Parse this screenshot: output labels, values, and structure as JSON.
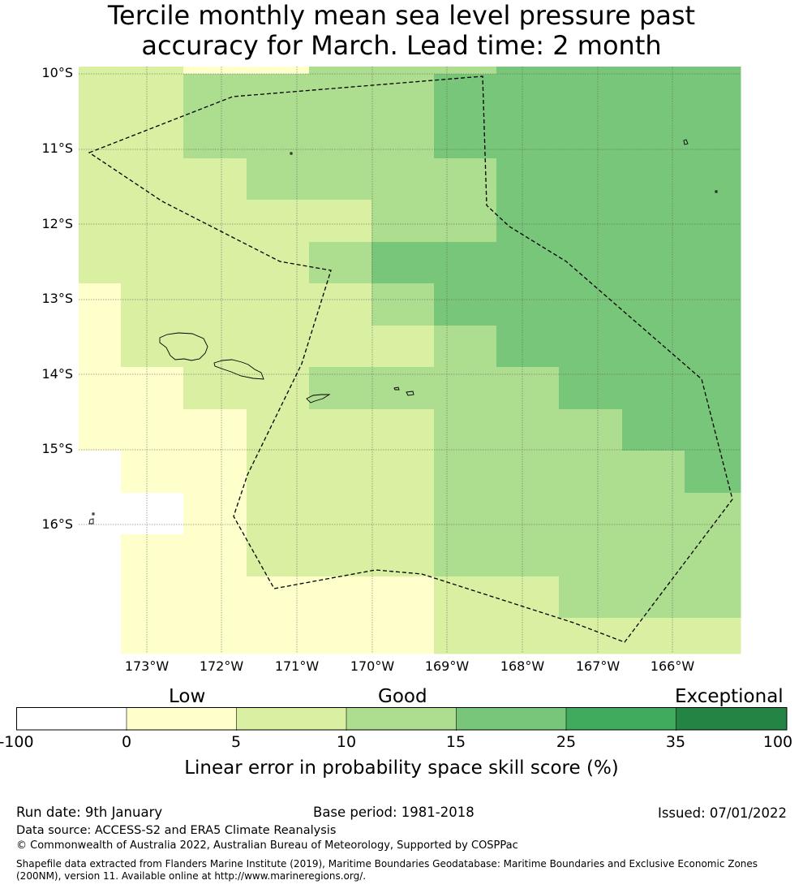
{
  "title": {
    "line1": "Tercile monthly mean sea level pressure past",
    "line2": "accuracy for March. Lead time: 2 month"
  },
  "map": {
    "lat_labels": [
      "10°S",
      "11°S",
      "12°S",
      "13°S",
      "14°S",
      "15°S",
      "16°S"
    ],
    "lon_labels": [
      "173°W",
      "172°W",
      "171°W",
      "170°W",
      "169°W",
      "168°W",
      "167°W",
      "166°W"
    ],
    "colors": {
      "below_0": "#ffffff",
      "0_5": "#ffffcc",
      "5_10": "#d9f0a3",
      "10_15": "#addd8e",
      "15_25": "#78c679",
      "25_35": "#41ab5d",
      "35_100": "#238443"
    },
    "features": [
      "skill-score-grid",
      "eez-boundary-dashed",
      "samoa-islands",
      "american-samoa-islands",
      "swains-island",
      "wallis-futuna-islands"
    ]
  },
  "colorbar": {
    "category_low": "Low",
    "category_good": "Good",
    "category_exceptional": "Exceptional",
    "ticks": [
      "-100",
      "0",
      "5",
      "10",
      "15",
      "25",
      "35",
      "100"
    ],
    "label": "Linear error in probability space skill score (%)"
  },
  "footer": {
    "run_date": "Run date: 9th January",
    "base_period": "Base period: 1981-2018",
    "issued": "Issued: 07/01/2022",
    "data_source": "Data source: ACCESS-S2 and ERA5 Climate Reanalysis",
    "copyright": "© Commonwealth of Australia 2022, Australian Bureau of Meteorology, Supported by COSPPac",
    "shapefile": "Shapefile data extracted from Flanders Marine Institute (2019), Maritime Boundaries Geodatabase: Maritime Boundaries and Exclusive Economic Zones (200NM), version 11. Available online at http://www.marineregions.org/."
  }
}
